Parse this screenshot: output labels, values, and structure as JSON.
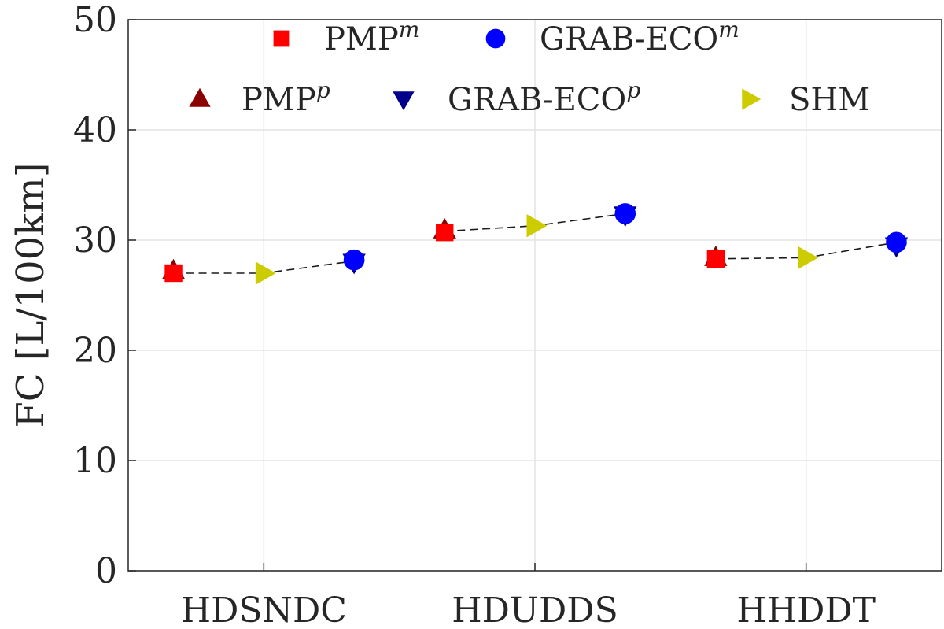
{
  "chart_data": {
    "type": "scatter",
    "title": "",
    "xlabel": "",
    "ylabel": "FC [L/100km]",
    "ylim": [
      0,
      50
    ],
    "yticks": [
      "0",
      "10",
      "20",
      "30",
      "40",
      "50"
    ],
    "categories": [
      "HDSNDC",
      "HDUDDS",
      "HHDDT"
    ],
    "grid": true,
    "legend_position": "top",
    "series": [
      {
        "name": "PMP",
        "name_sup": "m",
        "marker": "square",
        "color": "#ff0000",
        "points": [
          {
            "category": "HDSNDC",
            "offset": -0.333,
            "y": 27.0
          },
          {
            "category": "HDUDDS",
            "offset": -0.333,
            "y": 30.7
          },
          {
            "category": "HHDDT",
            "offset": -0.333,
            "y": 28.3
          }
        ]
      },
      {
        "name": "GRAB-ECO",
        "name_sup": "m",
        "marker": "circle",
        "color": "#0000ff",
        "points": [
          {
            "category": "HDSNDC",
            "offset": 0.333,
            "y": 28.2
          },
          {
            "category": "HDUDDS",
            "offset": 0.333,
            "y": 32.4
          },
          {
            "category": "HHDDT",
            "offset": 0.333,
            "y": 29.8
          }
        ]
      },
      {
        "name": "PMP",
        "name_sup": "p",
        "marker": "triangle-up",
        "color": "#8b0000",
        "points": [
          {
            "category": "HDSNDC",
            "offset": -0.333,
            "y": 27.2
          },
          {
            "category": "HDUDDS",
            "offset": -0.333,
            "y": 30.9
          },
          {
            "category": "HHDDT",
            "offset": -0.333,
            "y": 28.4
          }
        ]
      },
      {
        "name": "GRAB-ECO",
        "name_sup": "p",
        "marker": "triangle-down",
        "color": "#00008b",
        "points": [
          {
            "category": "HDSNDC",
            "offset": 0.333,
            "y": 28.0
          },
          {
            "category": "HDUDDS",
            "offset": 0.333,
            "y": 32.3
          },
          {
            "category": "HHDDT",
            "offset": 0.333,
            "y": 29.5
          }
        ]
      },
      {
        "name": "SHM",
        "name_sup": "",
        "marker": "triangle-right",
        "color": "#cccc00",
        "points": [
          {
            "category": "HDSNDC",
            "offset": 0.0,
            "y": 27.0
          },
          {
            "category": "HDUDDS",
            "offset": 0.0,
            "y": 31.3
          },
          {
            "category": "HHDDT",
            "offset": 0.0,
            "y": 28.4
          }
        ]
      }
    ],
    "connector_lines": [
      {
        "category": "HDSNDC",
        "points": [
          {
            "offset": -0.333,
            "y": 27.0
          },
          {
            "offset": 0.0,
            "y": 27.0
          },
          {
            "offset": 0.333,
            "y": 28.1
          }
        ]
      },
      {
        "category": "HDUDDS",
        "points": [
          {
            "offset": -0.333,
            "y": 30.8
          },
          {
            "offset": 0.0,
            "y": 31.3
          },
          {
            "offset": 0.333,
            "y": 32.4
          }
        ]
      },
      {
        "category": "HHDDT",
        "points": [
          {
            "offset": -0.333,
            "y": 28.3
          },
          {
            "offset": 0.0,
            "y": 28.4
          },
          {
            "offset": 0.333,
            "y": 29.8
          }
        ]
      }
    ]
  }
}
